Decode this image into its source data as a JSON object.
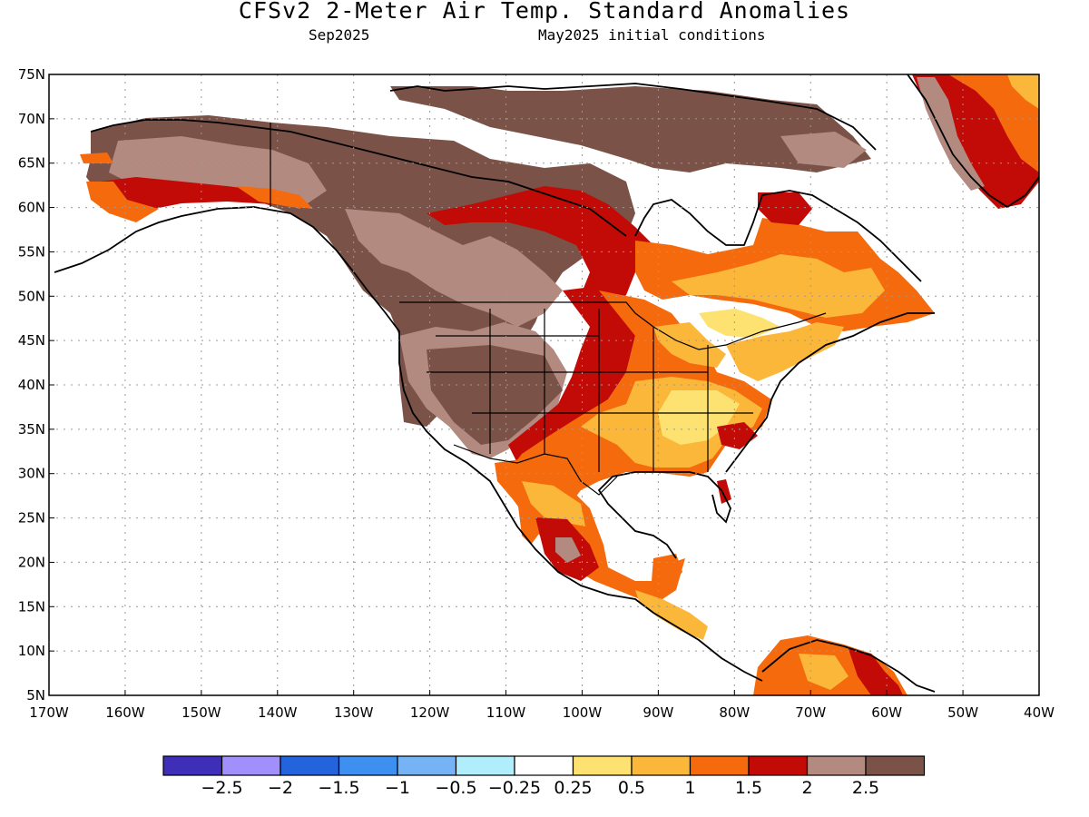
{
  "title": "CFSv2 2-Meter Air Temp. Standard Anomalies",
  "valid_month": "Sep2025",
  "initial_conditions": "May2025 initial conditions",
  "lat_labels": [
    "75N",
    "70N",
    "65N",
    "60N",
    "55N",
    "50N",
    "45N",
    "40N",
    "35N",
    "30N",
    "25N",
    "20N",
    "15N",
    "10N",
    "5N"
  ],
  "lon_labels": [
    "170W",
    "160W",
    "150W",
    "140W",
    "130W",
    "120W",
    "110W",
    "100W",
    "90W",
    "80W",
    "70W",
    "60W",
    "50W",
    "40W"
  ],
  "colorbar": {
    "colors": [
      "#3f2fb8",
      "#a18ffc",
      "#2364dd",
      "#3d8ff0",
      "#75b3f4",
      "#b0eefc",
      "#ffffff",
      "#fde272",
      "#fbb73a",
      "#f46a0c",
      "#c20a06",
      "#b28a80",
      "#7a5248"
    ],
    "labels": [
      "-2.5",
      "-2",
      "-1.5",
      "-1",
      "-0.5",
      "-0.25",
      "0.25",
      "0.5",
      "1",
      "1.5",
      "2",
      "2.5"
    ]
  }
}
